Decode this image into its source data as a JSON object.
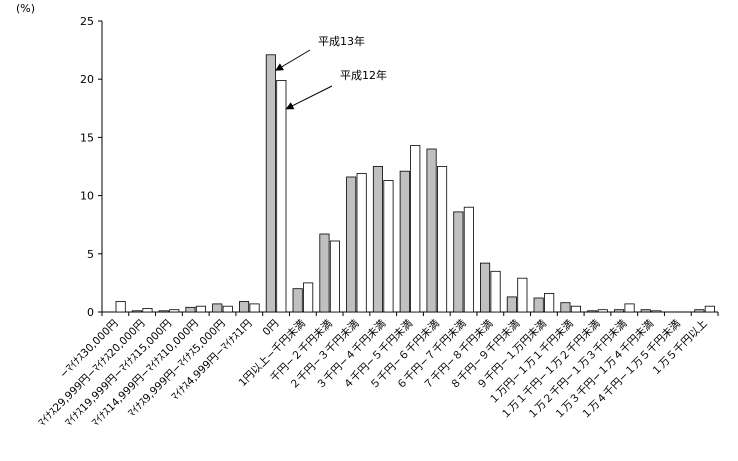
{
  "chart_data": {
    "type": "bar",
    "ylabel": "(%)",
    "ylim": [
      0,
      25
    ],
    "yticks": [
      0,
      5,
      10,
      15,
      20,
      25
    ],
    "grid": false,
    "legend": "none",
    "categories": [
      "−ﾏｲﾅｽ30,000円",
      "ﾏｲﾅｽ29,999円−ﾏｲﾅｽ20,000円",
      "ﾏｲﾅｽ19,999円−ﾏｲﾅｽ15,000円",
      "ﾏｲﾅｽ14,999円−ﾏｲﾅｽ10,000円",
      "ﾏｲﾅｽ9,999円−ﾏｲﾅｽ5,000円",
      "ﾏｲﾅｽ4,999円−ﾏｲﾅｽ1円",
      "0円",
      "1円以上−千円未満",
      "千円−２千円未満",
      "２千円−３千円未満",
      "３千円−４千円未満",
      "４千円−５千円未満",
      "５千円−６千円未満",
      "６千円−７千円未満",
      "７千円−８千円未満",
      "８千円−９千円未満",
      "９千円−１万円未満",
      "１万円−１万１千円未満",
      "１万１千円−１万２千円未満",
      "１万２千円−１万３千円未満",
      "１万３千円−１万４千円未満",
      "１万４千円−１万５千円未満",
      "１万５千円以上"
    ],
    "series": [
      {
        "name": "平成13年",
        "color": "#c0c0c0",
        "values": [
          0.0,
          0.1,
          0.1,
          0.4,
          0.7,
          0.9,
          22.1,
          2.0,
          6.7,
          11.6,
          12.5,
          12.1,
          14.0,
          8.6,
          4.2,
          1.3,
          1.2,
          0.8,
          0.1,
          0.2,
          0.2,
          0.0,
          0.2
        ]
      },
      {
        "name": "平成12年",
        "color": "#ffffff",
        "values": [
          0.9,
          0.3,
          0.2,
          0.5,
          0.5,
          0.7,
          19.9,
          2.5,
          6.1,
          11.9,
          11.3,
          14.3,
          12.5,
          9.0,
          3.5,
          2.9,
          1.6,
          0.5,
          0.2,
          0.7,
          0.1,
          0.0,
          0.5
        ]
      }
    ],
    "annotations": [
      {
        "text": "平成13年",
        "series": 0
      },
      {
        "text": "平成12年",
        "series": 1
      }
    ]
  }
}
